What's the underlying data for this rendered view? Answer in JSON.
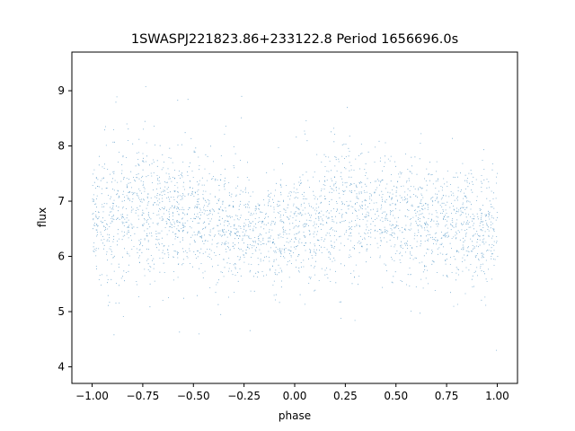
{
  "chart_data": {
    "type": "scatter",
    "title": "1SWASPJ221823.86+233122.8 Period 1656696.0s",
    "xlabel": "phase",
    "ylabel": "flux",
    "xlim": [
      -1.1,
      1.1
    ],
    "ylim": [
      3.7,
      9.7
    ],
    "xticks": [
      -1.0,
      -0.75,
      -0.5,
      -0.25,
      0.0,
      0.25,
      0.5,
      0.75,
      1.0
    ],
    "xtick_labels": [
      "−1.00",
      "−0.75",
      "−0.50",
      "−0.25",
      "0.00",
      "0.25",
      "0.50",
      "0.75",
      "1.00"
    ],
    "yticks": [
      4,
      5,
      6,
      7,
      8,
      9
    ],
    "ytick_labels": [
      "4",
      "5",
      "6",
      "7",
      "8",
      "9"
    ],
    "grid": false,
    "marker_color": "#1f77b4",
    "series": [
      {
        "x_range": [
          -1.0,
          1.0
        ],
        "y_profile": {
          "x": [
            -1.0,
            -0.9,
            -0.8,
            -0.75,
            -0.7,
            -0.6,
            -0.5,
            -0.4,
            -0.3,
            -0.25,
            -0.2,
            -0.1,
            0.0,
            0.1,
            0.2,
            0.25,
            0.3,
            0.4,
            0.5,
            0.6,
            0.7,
            0.75,
            0.8,
            0.9,
            1.0
          ],
          "median": [
            6.6,
            6.7,
            6.8,
            6.85,
            6.8,
            6.75,
            6.7,
            6.6,
            6.5,
            6.5,
            6.45,
            6.45,
            6.5,
            6.6,
            6.8,
            6.85,
            6.85,
            6.8,
            6.7,
            6.65,
            6.6,
            6.6,
            6.55,
            6.5,
            6.5
          ],
          "spread": [
            0.55,
            0.6,
            0.65,
            0.65,
            0.6,
            0.55,
            0.55,
            0.5,
            0.45,
            0.45,
            0.45,
            0.45,
            0.5,
            0.55,
            0.6,
            0.65,
            0.6,
            0.55,
            0.55,
            0.5,
            0.5,
            0.5,
            0.5,
            0.5,
            0.5
          ]
        },
        "min": 3.95,
        "max": 9.5
      }
    ]
  }
}
